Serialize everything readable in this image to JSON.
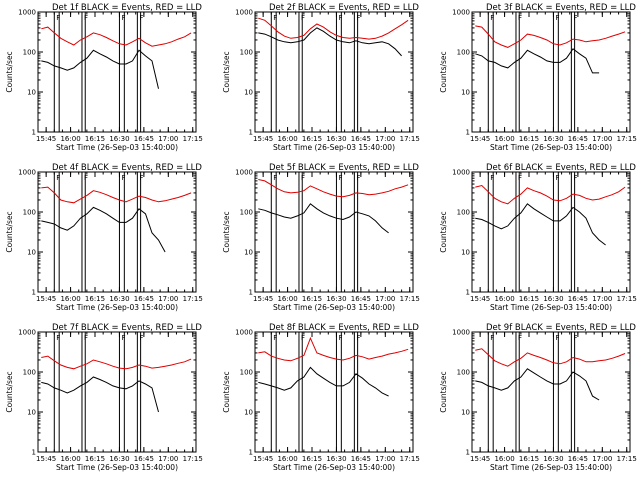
{
  "chart_data": {
    "type": "line",
    "layout": "3x3 grid",
    "shared": {
      "ylabel": "Counts/sec",
      "xlabel": "Start Time (26-Sep-03 15:40:00)",
      "x_tick_labels": [
        "15:45",
        "16:00",
        "16:15",
        "16:30",
        "16:45",
        "17:00",
        "17:15"
      ],
      "x_range_minutes_after_1540": [
        0,
        97
      ],
      "y_scale": "log",
      "y_range": [
        1,
        1000
      ],
      "y_tick_labels": [
        "1",
        "10",
        "100",
        "1000"
      ],
      "series_names": [
        "Events",
        "LLD"
      ],
      "series_colors": {
        "Events": "#000000",
        "LLD": "#e00000"
      },
      "vertical_markers_minutes": [
        10,
        13,
        27,
        29,
        50,
        53,
        61,
        63
      ],
      "flag_labels": [
        "F",
        "F",
        "F",
        "F"
      ],
      "flag_at_minutes": [
        10,
        27,
        50,
        61
      ],
      "x_data_minutes": [
        2,
        6,
        10,
        14,
        18,
        22,
        26,
        30,
        34,
        38,
        42,
        46,
        50,
        54,
        58,
        62,
        66,
        70,
        74,
        78,
        82,
        86,
        90,
        94
      ]
    },
    "panels": [
      {
        "title": "Det 1f BLACK = Events, RED = LLD",
        "red": [
          380,
          420,
          300,
          220,
          180,
          150,
          200,
          240,
          300,
          270,
          230,
          190,
          160,
          150,
          180,
          220,
          170,
          140,
          150,
          160,
          180,
          210,
          240,
          300
        ],
        "black": [
          60,
          55,
          45,
          40,
          35,
          40,
          55,
          70,
          110,
          90,
          75,
          60,
          50,
          50,
          60,
          110,
          80,
          60,
          12,
          null,
          null,
          null,
          null,
          null
        ]
      },
      {
        "title": "Det 2f BLACK = Events, RED = LLD",
        "red": [
          700,
          620,
          450,
          320,
          250,
          220,
          230,
          260,
          380,
          500,
          420,
          320,
          260,
          230,
          220,
          230,
          220,
          210,
          220,
          250,
          300,
          380,
          480,
          620
        ],
        "black": [
          300,
          280,
          240,
          200,
          180,
          170,
          180,
          200,
          300,
          400,
          330,
          250,
          200,
          180,
          170,
          190,
          170,
          160,
          170,
          180,
          160,
          120,
          80,
          null
        ]
      },
      {
        "title": "Det 3f BLACK = Events, RED = LLD",
        "red": [
          450,
          420,
          280,
          180,
          150,
          130,
          160,
          200,
          280,
          260,
          230,
          200,
          160,
          150,
          170,
          210,
          200,
          180,
          190,
          200,
          220,
          250,
          280,
          320
        ],
        "black": [
          90,
          80,
          60,
          55,
          45,
          40,
          55,
          70,
          110,
          90,
          75,
          60,
          55,
          55,
          70,
          120,
          90,
          70,
          30,
          30,
          null,
          null,
          null,
          null
        ]
      },
      {
        "title": "Det 4f BLACK = Events, RED = LLD",
        "red": [
          400,
          420,
          300,
          200,
          180,
          170,
          210,
          260,
          340,
          310,
          270,
          230,
          200,
          180,
          210,
          250,
          230,
          200,
          180,
          190,
          210,
          230,
          260,
          300
        ],
        "black": [
          60,
          55,
          50,
          40,
          35,
          45,
          70,
          90,
          130,
          110,
          90,
          70,
          55,
          55,
          70,
          120,
          90,
          30,
          20,
          10,
          null,
          null,
          null,
          null
        ]
      },
      {
        "title": "Det 5f BLACK = Events, RED = LLD",
        "red": [
          650,
          600,
          480,
          380,
          320,
          300,
          310,
          340,
          450,
          380,
          320,
          280,
          250,
          240,
          260,
          300,
          290,
          270,
          280,
          300,
          330,
          380,
          420,
          480
        ],
        "black": [
          120,
          110,
          95,
          85,
          75,
          70,
          80,
          95,
          160,
          120,
          95,
          80,
          70,
          65,
          75,
          100,
          90,
          80,
          60,
          40,
          30,
          null,
          null,
          null
        ]
      },
      {
        "title": "Det 6f BLACK = Events, RED = LLD",
        "red": [
          420,
          460,
          320,
          220,
          180,
          160,
          220,
          280,
          400,
          340,
          300,
          250,
          200,
          190,
          220,
          280,
          260,
          220,
          200,
          210,
          240,
          270,
          320,
          420
        ],
        "black": [
          70,
          65,
          55,
          45,
          38,
          45,
          70,
          95,
          160,
          120,
          95,
          75,
          60,
          60,
          80,
          130,
          100,
          70,
          30,
          20,
          15,
          null,
          null,
          null
        ]
      },
      {
        "title": "Det 7f BLACK = Events, RED = LLD",
        "red": [
          230,
          250,
          190,
          150,
          130,
          120,
          140,
          160,
          200,
          180,
          160,
          140,
          125,
          120,
          130,
          150,
          140,
          125,
          130,
          140,
          150,
          165,
          180,
          210
        ],
        "black": [
          55,
          50,
          40,
          35,
          30,
          35,
          45,
          55,
          75,
          65,
          55,
          45,
          40,
          38,
          45,
          60,
          50,
          40,
          10,
          null,
          null,
          null,
          null,
          null
        ]
      },
      {
        "title": "Det 8f BLACK = Events, RED = LLD",
        "red": [
          300,
          320,
          250,
          220,
          200,
          190,
          220,
          260,
          700,
          300,
          260,
          230,
          210,
          200,
          220,
          260,
          240,
          210,
          230,
          250,
          280,
          300,
          330,
          370
        ],
        "black": [
          55,
          50,
          45,
          40,
          35,
          40,
          60,
          75,
          130,
          90,
          70,
          55,
          45,
          45,
          55,
          90,
          70,
          50,
          40,
          30,
          25,
          null,
          null,
          null
        ]
      },
      {
        "title": "Det 9f BLACK = Events, RED = LLD",
        "red": [
          350,
          380,
          270,
          190,
          160,
          140,
          180,
          220,
          300,
          260,
          230,
          200,
          170,
          160,
          180,
          230,
          210,
          180,
          180,
          190,
          200,
          220,
          250,
          290
        ],
        "black": [
          60,
          55,
          45,
          40,
          35,
          40,
          60,
          75,
          120,
          95,
          75,
          60,
          50,
          50,
          60,
          100,
          80,
          60,
          25,
          20,
          null,
          null,
          null,
          null
        ]
      }
    ]
  }
}
